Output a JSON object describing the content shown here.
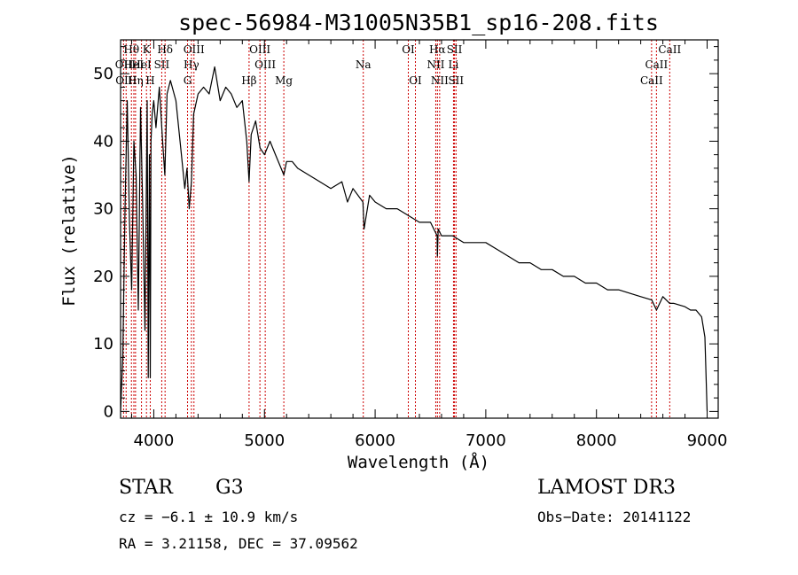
{
  "chart_data": {
    "type": "line",
    "title": "spec-56984-M31005N35B1_sp16-208.fits",
    "xlabel": "Wavelength (Å)",
    "ylabel": "Flux (relative)",
    "xlim": [
      3700,
      9100
    ],
    "ylim": [
      -1,
      55
    ],
    "xticks": [
      4000,
      5000,
      6000,
      7000,
      8000,
      9000
    ],
    "yticks": [
      0,
      10,
      20,
      30,
      40,
      50
    ],
    "series": [
      {
        "name": "spectrum",
        "x": [
          3700,
          3720,
          3740,
          3760,
          3780,
          3800,
          3820,
          3840,
          3860,
          3880,
          3900,
          3920,
          3940,
          3950,
          3960,
          3968,
          3975,
          3985,
          4000,
          4020,
          4050,
          4080,
          4100,
          4120,
          4150,
          4200,
          4250,
          4280,
          4300,
          4320,
          4340,
          4360,
          4400,
          4450,
          4500,
          4550,
          4600,
          4650,
          4700,
          4750,
          4800,
          4840,
          4861,
          4880,
          4920,
          4960,
          5000,
          5050,
          5100,
          5150,
          5175,
          5200,
          5250,
          5300,
          5400,
          5500,
          5600,
          5700,
          5750,
          5800,
          5890,
          5900,
          5950,
          6000,
          6100,
          6200,
          6300,
          6400,
          6500,
          6560,
          6563,
          6570,
          6600,
          6700,
          6800,
          6900,
          7000,
          7100,
          7200,
          7300,
          7400,
          7500,
          7600,
          7700,
          7800,
          7900,
          8000,
          8100,
          8200,
          8300,
          8400,
          8500,
          8542,
          8600,
          8662,
          8700,
          8800,
          8850,
          8900,
          8950,
          8980,
          9000
        ],
        "values": [
          0,
          8,
          30,
          46,
          28,
          18,
          40,
          35,
          15,
          45,
          30,
          12,
          46,
          5,
          38,
          5,
          40,
          44,
          46,
          42,
          48,
          40,
          35,
          47,
          49,
          46,
          38,
          33,
          36,
          30,
          34,
          44,
          47,
          48,
          47,
          51,
          46,
          48,
          47,
          45,
          46,
          40,
          34,
          41,
          43,
          39,
          38,
          40,
          38,
          36,
          35,
          37,
          37,
          36,
          35,
          34,
          33,
          34,
          31,
          33,
          31,
          27,
          32,
          31,
          30,
          30,
          29,
          28,
          28,
          26,
          23,
          27,
          26,
          26,
          25,
          25,
          25,
          24,
          23,
          22,
          22,
          21,
          21,
          20,
          20,
          19,
          19,
          18,
          18,
          17.5,
          17,
          16.5,
          15,
          17,
          16,
          16,
          15.5,
          15,
          15,
          14,
          11,
          0
        ]
      }
    ],
    "spectral_lines": [
      {
        "label": "Hθ",
        "wavelength": 3798,
        "row": 0
      },
      {
        "label": "K",
        "wavelength": 3934,
        "row": 0
      },
      {
        "label": "Hδ",
        "wavelength": 4102,
        "row": 0
      },
      {
        "label": "OIII",
        "wavelength": 4363,
        "row": 0
      },
      {
        "label": "OIII",
        "wavelength": 4959,
        "row": 0
      },
      {
        "label": "OI",
        "wavelength": 6300,
        "row": 0
      },
      {
        "label": "Hα",
        "wavelength": 6563,
        "row": 0
      },
      {
        "label": "SII",
        "wavelength": 6717,
        "row": 0
      },
      {
        "label": "CaII",
        "wavelength": 8662,
        "row": 0
      },
      {
        "label": "OII",
        "wavelength": 3727,
        "row": 1
      },
      {
        "label": "HeI",
        "wavelength": 3820,
        "row": 1
      },
      {
        "label": "HeI",
        "wavelength": 3889,
        "row": 1
      },
      {
        "label": "SII",
        "wavelength": 4072,
        "row": 1
      },
      {
        "label": "Hγ",
        "wavelength": 4340,
        "row": 1
      },
      {
        "label": "OIII",
        "wavelength": 5007,
        "row": 1
      },
      {
        "label": "Na",
        "wavelength": 5893,
        "row": 1
      },
      {
        "label": "NII",
        "wavelength": 6548,
        "row": 1
      },
      {
        "label": "Li",
        "wavelength": 6708,
        "row": 1
      },
      {
        "label": "CaII",
        "wavelength": 8542,
        "row": 1
      },
      {
        "label": "OIII",
        "wavelength": 3750,
        "row": 2
      },
      {
        "label": "Hη",
        "wavelength": 3835,
        "row": 2
      },
      {
        "label": "H",
        "wavelength": 3968,
        "row": 2
      },
      {
        "label": "G",
        "wavelength": 4305,
        "row": 2
      },
      {
        "label": "Hβ",
        "wavelength": 4861,
        "row": 2
      },
      {
        "label": "Mg",
        "wavelength": 5175,
        "row": 2
      },
      {
        "label": "OI",
        "wavelength": 6364,
        "row": 2
      },
      {
        "label": "NII",
        "wavelength": 6583,
        "row": 2
      },
      {
        "label": "SII",
        "wavelength": 6731,
        "row": 2
      },
      {
        "label": "CaII",
        "wavelength": 8498,
        "row": 2
      }
    ],
    "line_color": "#cc0000"
  },
  "info": {
    "object_type": "STAR",
    "subclass": "G3",
    "survey": "LAMOST DR3",
    "velocity": "cz = −6.1 ± 10.9 km/s",
    "obs_date": "Obs−Date: 20141122",
    "coords": "RA =   3.21158, DEC =  37.09562"
  }
}
